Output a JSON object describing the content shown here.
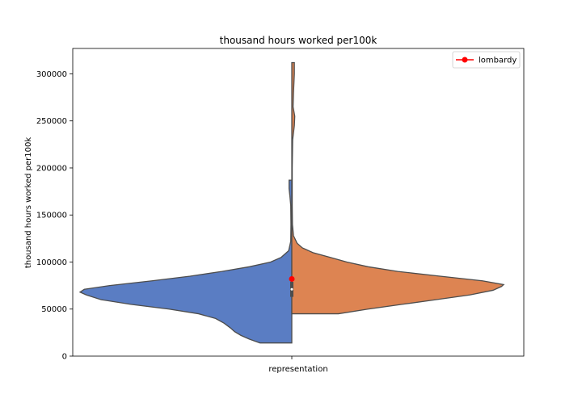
{
  "chart_data": {
    "type": "violin",
    "title": "thousand hours worked per100k",
    "xlabel": "representation",
    "ylabel": "thousand hours worked per100k",
    "ylim": [
      0,
      327000
    ],
    "yticks": [
      0,
      50000,
      100000,
      150000,
      200000,
      250000,
      300000
    ],
    "ytick_labels": [
      "0",
      "50000",
      "100000",
      "150000",
      "200000",
      "250000",
      "300000"
    ],
    "grid": false,
    "legend": {
      "placement": "top-right",
      "entries": [
        {
          "label": "lombardy",
          "color": "#ff0000"
        }
      ]
    },
    "halves": [
      {
        "side": "left",
        "color": "#5a7dc3",
        "ymin": 14000,
        "ymax": 187000,
        "density": [
          [
            14000,
            0.15
          ],
          [
            18000,
            0.2
          ],
          [
            22000,
            0.24
          ],
          [
            26000,
            0.27
          ],
          [
            30000,
            0.29
          ],
          [
            35000,
            0.32
          ],
          [
            40000,
            0.36
          ],
          [
            45000,
            0.44
          ],
          [
            50000,
            0.58
          ],
          [
            55000,
            0.76
          ],
          [
            60000,
            0.9
          ],
          [
            65000,
            0.97
          ],
          [
            68000,
            1.0
          ],
          [
            71000,
            0.98
          ],
          [
            75000,
            0.86
          ],
          [
            80000,
            0.66
          ],
          [
            85000,
            0.48
          ],
          [
            90000,
            0.33
          ],
          [
            95000,
            0.2
          ],
          [
            100000,
            0.1
          ],
          [
            105000,
            0.05
          ],
          [
            112000,
            0.015
          ],
          [
            122000,
            0.005
          ],
          [
            140000,
            0.004
          ],
          [
            160000,
            0.005
          ],
          [
            170000,
            0.009
          ],
          [
            178000,
            0.013
          ],
          [
            187000,
            0.013
          ]
        ]
      },
      {
        "side": "right",
        "color": "#dd8452",
        "ymin": 45000,
        "ymax": 312000,
        "density": [
          [
            45000,
            0.22
          ],
          [
            50000,
            0.36
          ],
          [
            55000,
            0.52
          ],
          [
            60000,
            0.68
          ],
          [
            65000,
            0.84
          ],
          [
            70000,
            0.95
          ],
          [
            74000,
            0.99
          ],
          [
            76000,
            1.0
          ],
          [
            80000,
            0.9
          ],
          [
            85000,
            0.7
          ],
          [
            90000,
            0.5
          ],
          [
            95000,
            0.36
          ],
          [
            100000,
            0.26
          ],
          [
            105000,
            0.18
          ],
          [
            110000,
            0.1
          ],
          [
            115000,
            0.05
          ],
          [
            120000,
            0.025
          ],
          [
            128000,
            0.008
          ],
          [
            140000,
            0.003
          ],
          [
            160000,
            0.002
          ],
          [
            200000,
            0.002
          ],
          [
            230000,
            0.004
          ],
          [
            245000,
            0.012
          ],
          [
            255000,
            0.014
          ],
          [
            265000,
            0.006
          ],
          [
            280000,
            0.008
          ],
          [
            300000,
            0.012
          ],
          [
            312000,
            0.012
          ]
        ]
      }
    ],
    "inner_box": {
      "q1": 63000,
      "median": 71000,
      "q3": 79000,
      "whisker_low": 14000,
      "whisker_high": 190000
    },
    "highlight_point": {
      "label": "lombardy",
      "value": 82000,
      "color": "#ff0000"
    }
  }
}
